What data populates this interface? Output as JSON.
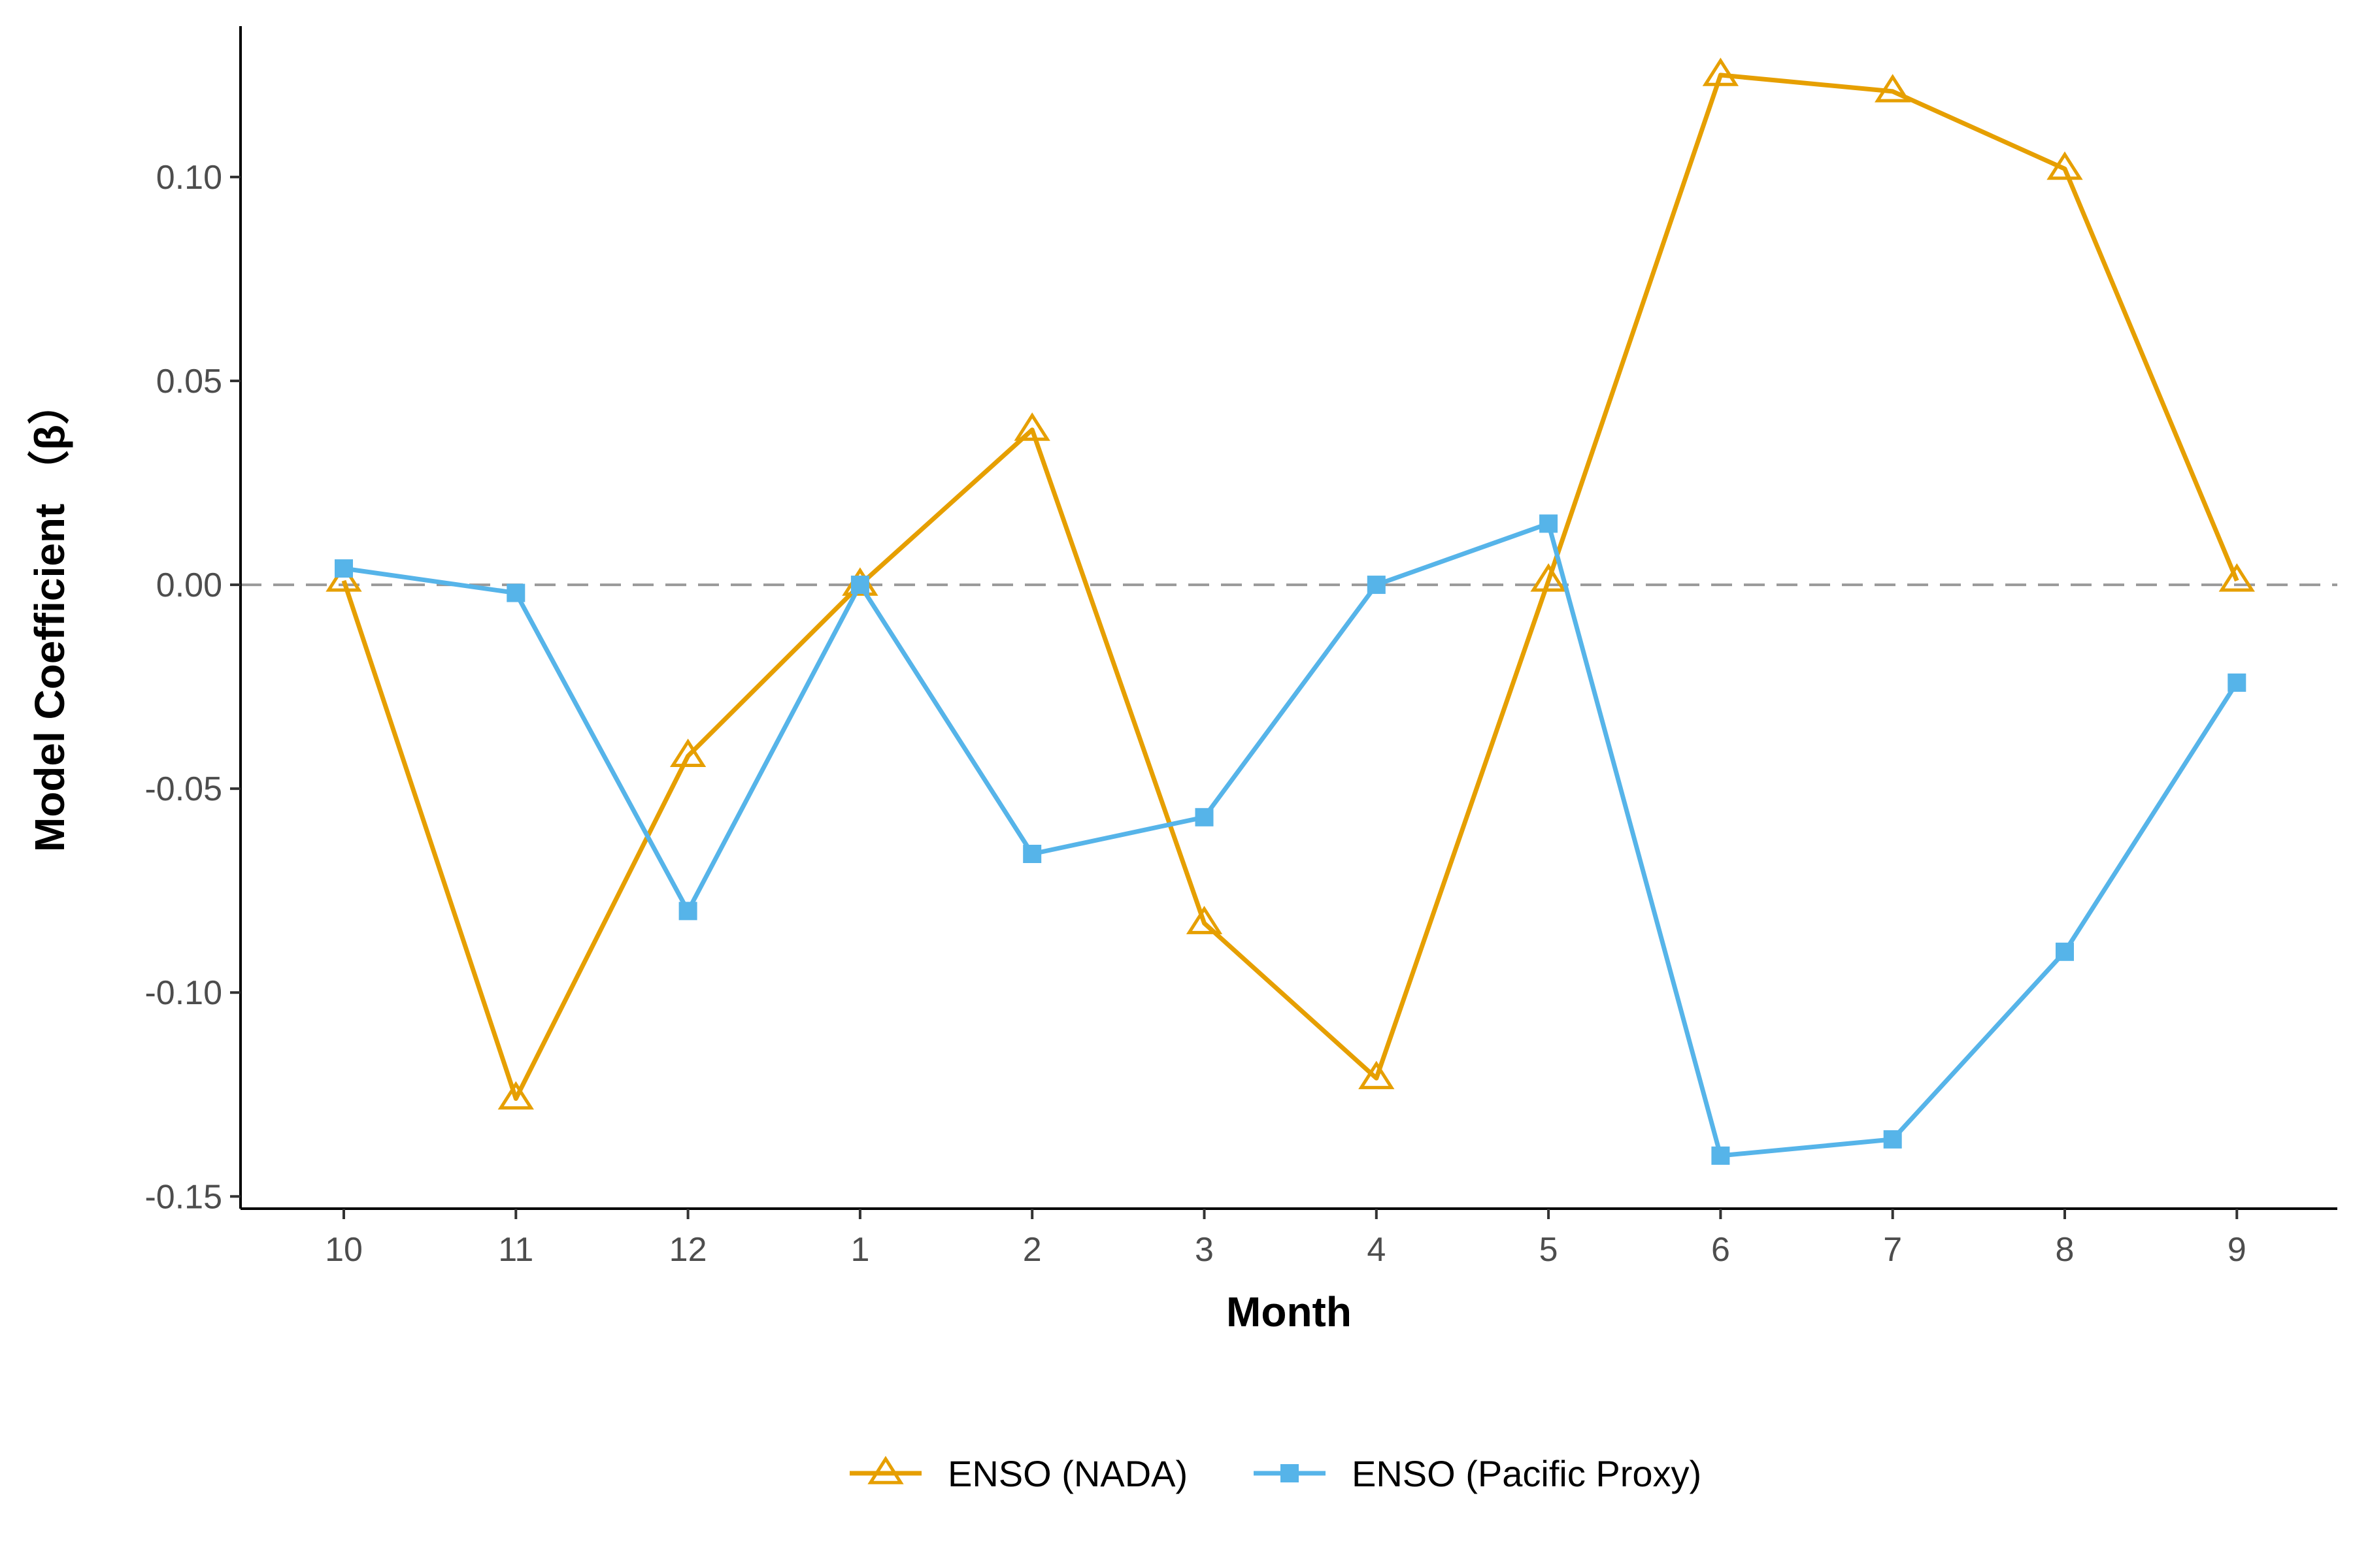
{
  "chart_data": {
    "type": "line",
    "xlabel": "Month",
    "ylabel": "Model Coefficient （β）",
    "categories": [
      "10",
      "11",
      "12",
      "1",
      "2",
      "3",
      "4",
      "5",
      "6",
      "7",
      "8",
      "9"
    ],
    "ylim": [
      -0.153,
      0.137
    ],
    "yticks": [
      -0.15,
      -0.1,
      -0.05,
      0.0,
      0.05,
      0.1
    ],
    "ytick_labels": [
      "-0.15",
      "-0.10",
      "-0.05",
      "0.00",
      "0.05",
      "0.10"
    ],
    "reference_line": {
      "y": 0,
      "style": "dashed",
      "color": "#999999"
    },
    "grid": false,
    "legend_position": "bottom",
    "series": [
      {
        "name": "ENSO (NADA)",
        "color": "#E69F00",
        "marker": "open-triangle",
        "values": [
          0.001,
          -0.126,
          -0.042,
          0.0,
          0.038,
          -0.083,
          -0.121,
          0.001,
          0.125,
          0.121,
          0.102,
          0.001
        ]
      },
      {
        "name": "ENSO (Pacific Proxy)",
        "color": "#56B4E9",
        "marker": "filled-square",
        "values": [
          0.004,
          -0.002,
          -0.08,
          0.0,
          -0.066,
          -0.057,
          0.0,
          0.015,
          -0.14,
          -0.136,
          -0.09,
          -0.024
        ]
      }
    ]
  }
}
